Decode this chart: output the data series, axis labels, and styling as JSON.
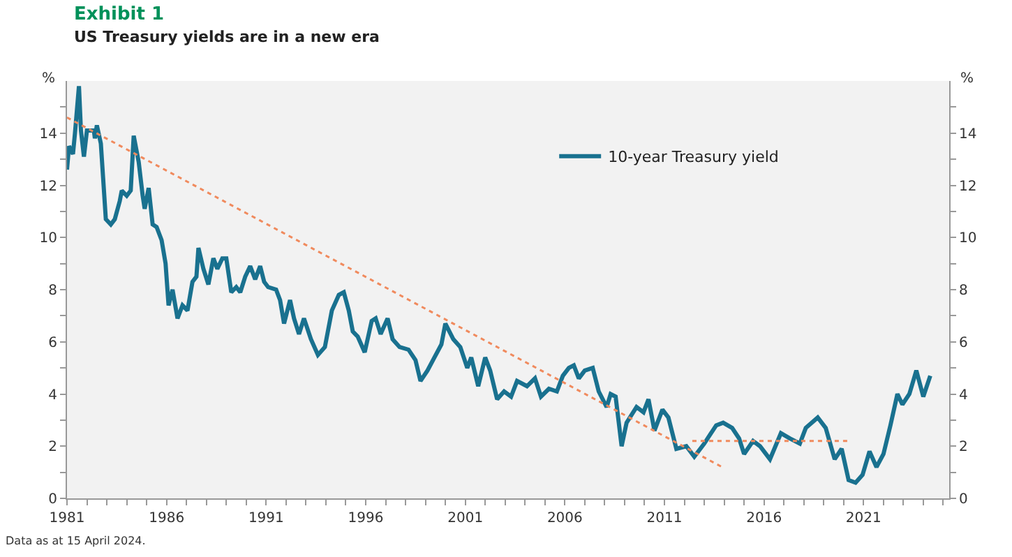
{
  "chart_data": {
    "type": "line",
    "title": "Exhibit 1",
    "subtitle": "US Treasury yields are in a new era",
    "ylabel": "%",
    "y2label": "%",
    "annotations": [
      "Data as at 15 April 2024."
    ],
    "xlim": [
      1981,
      2025.3
    ],
    "ylim": [
      0,
      16
    ],
    "y2lim": [
      0,
      16
    ],
    "xticks": [
      1981,
      {
        "value": 1982,
        "label": null
      },
      {
        "value": 1983,
        "label": null
      },
      {
        "value": 1984,
        "label": null
      },
      {
        "value": 1985,
        "label": null
      },
      1986,
      {
        "value": 1987,
        "label": null
      },
      {
        "value": 1988,
        "label": null
      },
      {
        "value": 1989,
        "label": null
      },
      {
        "value": 1990,
        "label": null
      },
      1991,
      {
        "value": 1992,
        "label": null
      },
      {
        "value": 1993,
        "label": null
      },
      {
        "value": 1994,
        "label": null
      },
      {
        "value": 1995,
        "label": null
      },
      1996,
      {
        "value": 1997,
        "label": null
      },
      {
        "value": 1998,
        "label": null
      },
      {
        "value": 1999,
        "label": null
      },
      {
        "value": 2000,
        "label": null
      },
      2001,
      {
        "value": 2002,
        "label": null
      },
      {
        "value": 2003,
        "label": null
      },
      {
        "value": 2004,
        "label": null
      },
      {
        "value": 2005,
        "label": null
      },
      2006,
      {
        "value": 2007,
        "label": null
      },
      {
        "value": 2008,
        "label": null
      },
      {
        "value": 2009,
        "label": null
      },
      {
        "value": 2010,
        "label": null
      },
      2011,
      {
        "value": 2012,
        "label": null
      },
      {
        "value": 2013,
        "label": null
      },
      {
        "value": 2014,
        "label": null
      },
      {
        "value": 2015,
        "label": null
      },
      2016,
      {
        "value": 2017,
        "label": null
      },
      {
        "value": 2018,
        "label": null
      },
      {
        "value": 2019,
        "label": null
      },
      {
        "value": 2020,
        "label": null
      },
      2021,
      {
        "value": 2022,
        "label": null
      },
      {
        "value": 2023,
        "label": null
      },
      {
        "value": 2024,
        "label": null
      },
      {
        "value": 2025,
        "label": null
      }
    ],
    "yticks": [
      0,
      {
        "value": 1,
        "label": null
      },
      2,
      {
        "value": 3,
        "label": null
      },
      4,
      {
        "value": 5,
        "label": null
      },
      6,
      {
        "value": 7,
        "label": null
      },
      8,
      {
        "value": 9,
        "label": null
      },
      10,
      {
        "value": 11,
        "label": null
      },
      12,
      {
        "value": 13,
        "label": null
      },
      14,
      {
        "value": 15,
        "label": null
      }
    ],
    "y2ticks": [
      0,
      {
        "value": 1,
        "label": null
      },
      2,
      {
        "value": 3,
        "label": null
      },
      4,
      {
        "value": 5,
        "label": null
      },
      6,
      {
        "value": 7,
        "label": null
      },
      8,
      {
        "value": 9,
        "label": null
      },
      10,
      {
        "value": 11,
        "label": null
      },
      12,
      {
        "value": 13,
        "label": null
      },
      14,
      {
        "value": 15,
        "label": null
      }
    ],
    "grid": false,
    "legend": "top right",
    "marker": "none",
    "series": [
      {
        "name": "10-year Treasury yield",
        "color": "#19718f",
        "line_style": "solid",
        "x": [
          1981.0,
          1981.1,
          1981.3,
          1981.4,
          1981.6,
          1981.7,
          1981.85,
          1982.0,
          1982.35,
          1982.4,
          1982.5,
          1982.7,
          1982.95,
          1983.2,
          1983.4,
          1983.65,
          1983.75,
          1984.0,
          1984.2,
          1984.35,
          1984.6,
          1984.8,
          1984.9,
          1985.1,
          1985.3,
          1985.5,
          1985.75,
          1985.95,
          1986.1,
          1986.3,
          1986.55,
          1986.8,
          1987.05,
          1987.3,
          1987.5,
          1987.6,
          1987.85,
          1988.1,
          1988.35,
          1988.55,
          1988.8,
          1989.0,
          1989.25,
          1989.5,
          1989.7,
          1989.95,
          1990.2,
          1990.45,
          1990.7,
          1990.9,
          1991.1,
          1991.5,
          1991.7,
          1991.9,
          1992.2,
          1992.4,
          1992.65,
          1992.9,
          1993.25,
          1993.6,
          1993.95,
          1994.3,
          1994.65,
          1994.9,
          1995.15,
          1995.35,
          1995.6,
          1995.95,
          1996.3,
          1996.5,
          1996.75,
          1997.1,
          1997.35,
          1997.7,
          1998.15,
          1998.5,
          1998.75,
          1999.1,
          1999.45,
          1999.8,
          2000.0,
          2000.4,
          2000.75,
          2001.1,
          2001.3,
          2001.65,
          2002.0,
          2002.25,
          2002.6,
          2002.95,
          2003.3,
          2003.6,
          2004.1,
          2004.5,
          2004.8,
          2005.2,
          2005.6,
          2005.9,
          2006.2,
          2006.45,
          2006.7,
          2007.0,
          2007.4,
          2007.7,
          2008.1,
          2008.3,
          2008.55,
          2008.85,
          2009.1,
          2009.6,
          2009.95,
          2010.2,
          2010.5,
          2010.9,
          2011.2,
          2011.6,
          2012.1,
          2012.5,
          2013.0,
          2013.6,
          2013.95,
          2014.4,
          2014.75,
          2015.0,
          2015.45,
          2015.8,
          2016.3,
          2016.85,
          2017.3,
          2017.8,
          2018.1,
          2018.7,
          2019.1,
          2019.55,
          2019.9,
          2020.25,
          2020.6,
          2020.95,
          2021.3,
          2021.65,
          2022.0,
          2022.35,
          2022.7,
          2022.95,
          2023.3,
          2023.65,
          2024.0,
          2024.35
        ],
        "values": [
          12.6,
          13.5,
          13.2,
          14.0,
          15.8,
          14.1,
          13.1,
          14.1,
          14.1,
          13.8,
          14.3,
          13.6,
          10.7,
          10.5,
          10.7,
          11.4,
          11.8,
          11.6,
          11.8,
          13.9,
          12.9,
          11.6,
          11.1,
          11.9,
          10.5,
          10.4,
          9.9,
          9.0,
          7.4,
          8.0,
          6.9,
          7.4,
          7.2,
          8.3,
          8.5,
          9.6,
          8.8,
          8.2,
          9.2,
          8.8,
          9.2,
          9.2,
          7.9,
          8.1,
          7.9,
          8.5,
          8.9,
          8.4,
          8.9,
          8.3,
          8.1,
          8.0,
          7.6,
          6.7,
          7.6,
          6.9,
          6.3,
          6.9,
          6.1,
          5.5,
          5.8,
          7.2,
          7.8,
          7.9,
          7.2,
          6.4,
          6.2,
          5.6,
          6.8,
          6.9,
          6.3,
          6.9,
          6.1,
          5.8,
          5.7,
          5.3,
          4.5,
          4.9,
          5.4,
          5.9,
          6.7,
          6.1,
          5.8,
          5.0,
          5.4,
          4.3,
          5.4,
          4.9,
          3.8,
          4.1,
          3.9,
          4.5,
          4.3,
          4.6,
          3.9,
          4.2,
          4.1,
          4.7,
          5.0,
          5.1,
          4.6,
          4.9,
          5.0,
          4.1,
          3.5,
          4.0,
          3.9,
          2.0,
          2.9,
          3.5,
          3.3,
          3.8,
          2.6,
          3.4,
          3.1,
          1.9,
          2.0,
          1.6,
          2.1,
          2.8,
          2.9,
          2.7,
          2.3,
          1.7,
          2.2,
          2.0,
          1.5,
          2.5,
          2.3,
          2.1,
          2.7,
          3.1,
          2.7,
          1.5,
          1.9,
          0.7,
          0.6,
          0.9,
          1.8,
          1.2,
          1.7,
          2.8,
          4.0,
          3.6,
          4.0,
          4.9,
          3.9,
          4.7
        ]
      },
      {
        "color": "#f08a5d",
        "line_style": "dotted",
        "x": [
          1981,
          2013.9
        ],
        "values": [
          14.6,
          1.2
        ]
      },
      {
        "color": "#f08a5d",
        "line_style": "dotted",
        "axis": "y2",
        "x": [
          2012.4,
          2020.2
        ],
        "values": [
          2.2,
          2.2
        ]
      }
    ]
  }
}
